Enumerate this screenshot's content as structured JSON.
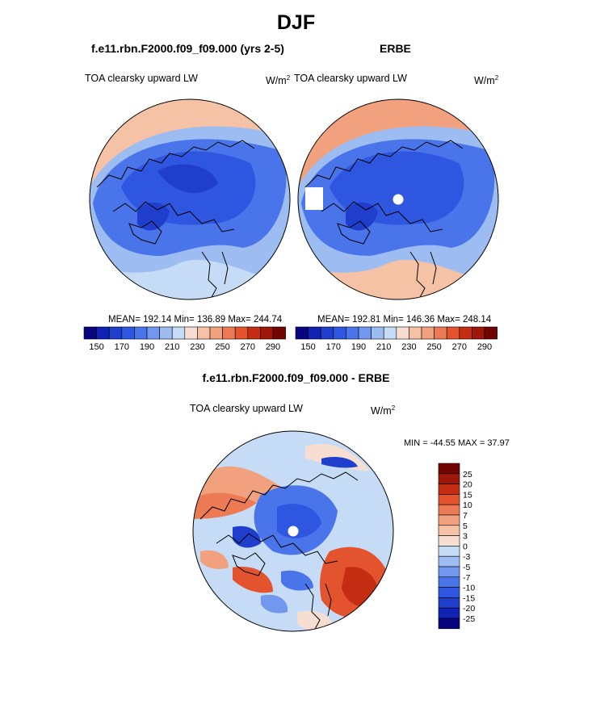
{
  "page": {
    "title": "DJF"
  },
  "colors": {
    "scale": [
      "#08067e",
      "#0f22b4",
      "#1f3ecc",
      "#2f56e0",
      "#4a74ea",
      "#7198ee",
      "#9dbdf2",
      "#c6dcf6",
      "#f7ded2",
      "#f6c2a6",
      "#f2a17e",
      "#ec7a55",
      "#e2532e",
      "#c42d12",
      "#9e1708",
      "#700502"
    ],
    "land_outline": "#000000",
    "missing": "#ffffff"
  },
  "panels": [
    {
      "id": "model",
      "title": "f.e11.rbn.F2000.f09_f09.000 (yrs 2-5)",
      "variable": "TOA clearsky upward LW",
      "units": "W/m",
      "units_sup": "2",
      "stats_text": "MEAN= 192.14  Min= 136.89  Max= 244.74",
      "colorbar_ticks": [
        "150",
        "170",
        "190",
        "210",
        "230",
        "250",
        "270",
        "290"
      ]
    },
    {
      "id": "erbe",
      "title": "ERBE",
      "variable": "TOA clearsky upward LW",
      "units": "W/m",
      "units_sup": "2",
      "stats_text": "MEAN= 192.81  Min= 146.36  Max= 248.14",
      "colorbar_ticks": [
        "150",
        "170",
        "190",
        "210",
        "230",
        "250",
        "270",
        "290"
      ]
    },
    {
      "id": "diff",
      "title": "f.e11.rbn.F2000.f09_f09.000 - ERBE",
      "variable": "TOA clearsky upward LW",
      "units": "W/m",
      "units_sup": "2",
      "stats_text": "MIN = -44.55 MAX =  37.97",
      "colorbar_ticks": [
        "25",
        "20",
        "15",
        "10",
        "7",
        "5",
        "3",
        "0",
        "-3",
        "-5",
        "-7",
        "-10",
        "-15",
        "-20",
        "-25"
      ]
    }
  ],
  "chart_data": [
    {
      "type": "heatmap",
      "projection": "north polar stereographic",
      "title": "f.e11.rbn.F2000.f09_f09.000 (yrs 2-5)",
      "variable": "TOA clearsky upward LW",
      "units": "W/m2",
      "mean": 192.14,
      "min": 136.89,
      "max": 244.74,
      "levels": [
        150,
        160,
        170,
        180,
        190,
        200,
        210,
        220,
        230,
        240,
        250,
        260,
        270,
        280,
        290
      ]
    },
    {
      "type": "heatmap",
      "projection": "north polar stereographic",
      "title": "ERBE",
      "variable": "TOA clearsky upward LW",
      "units": "W/m2",
      "mean": 192.81,
      "min": 146.36,
      "max": 248.14,
      "levels": [
        150,
        160,
        170,
        180,
        190,
        200,
        210,
        220,
        230,
        240,
        250,
        260,
        270,
        280,
        290
      ]
    },
    {
      "type": "heatmap",
      "projection": "north polar stereographic",
      "title": "f.e11.rbn.F2000.f09_f09.000 - ERBE",
      "variable": "TOA clearsky upward LW",
      "units": "W/m2",
      "min": -44.55,
      "max": 37.97,
      "levels": [
        -25,
        -20,
        -15,
        -10,
        -7,
        -5,
        -3,
        0,
        3,
        5,
        7,
        10,
        15,
        20,
        25
      ]
    }
  ]
}
